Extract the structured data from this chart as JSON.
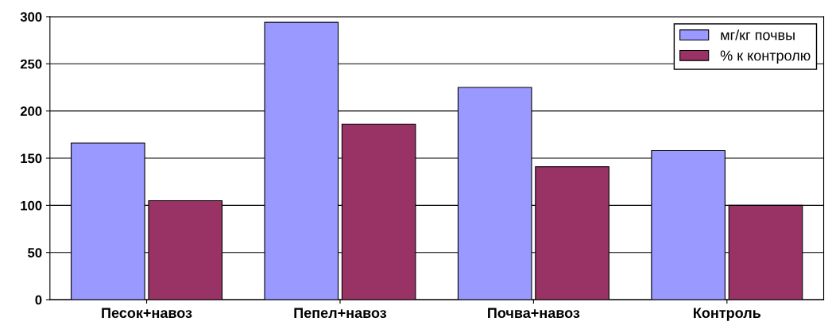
{
  "chart_data": {
    "type": "bar",
    "categories": [
      "Песок+навоз",
      "Пепел+навоз",
      "Почва+навоз",
      "Контроль"
    ],
    "series": [
      {
        "name": "мг/кг почвы",
        "color": "#9999ff",
        "values": [
          166,
          294,
          225,
          158
        ]
      },
      {
        "name": "% к контролю",
        "color": "#993366",
        "values": [
          105,
          186,
          141,
          100
        ]
      }
    ],
    "ylim": [
      0,
      300
    ],
    "yticks": [
      0,
      50,
      100,
      150,
      200,
      250,
      300
    ],
    "grid": "y",
    "legend": "top right"
  }
}
